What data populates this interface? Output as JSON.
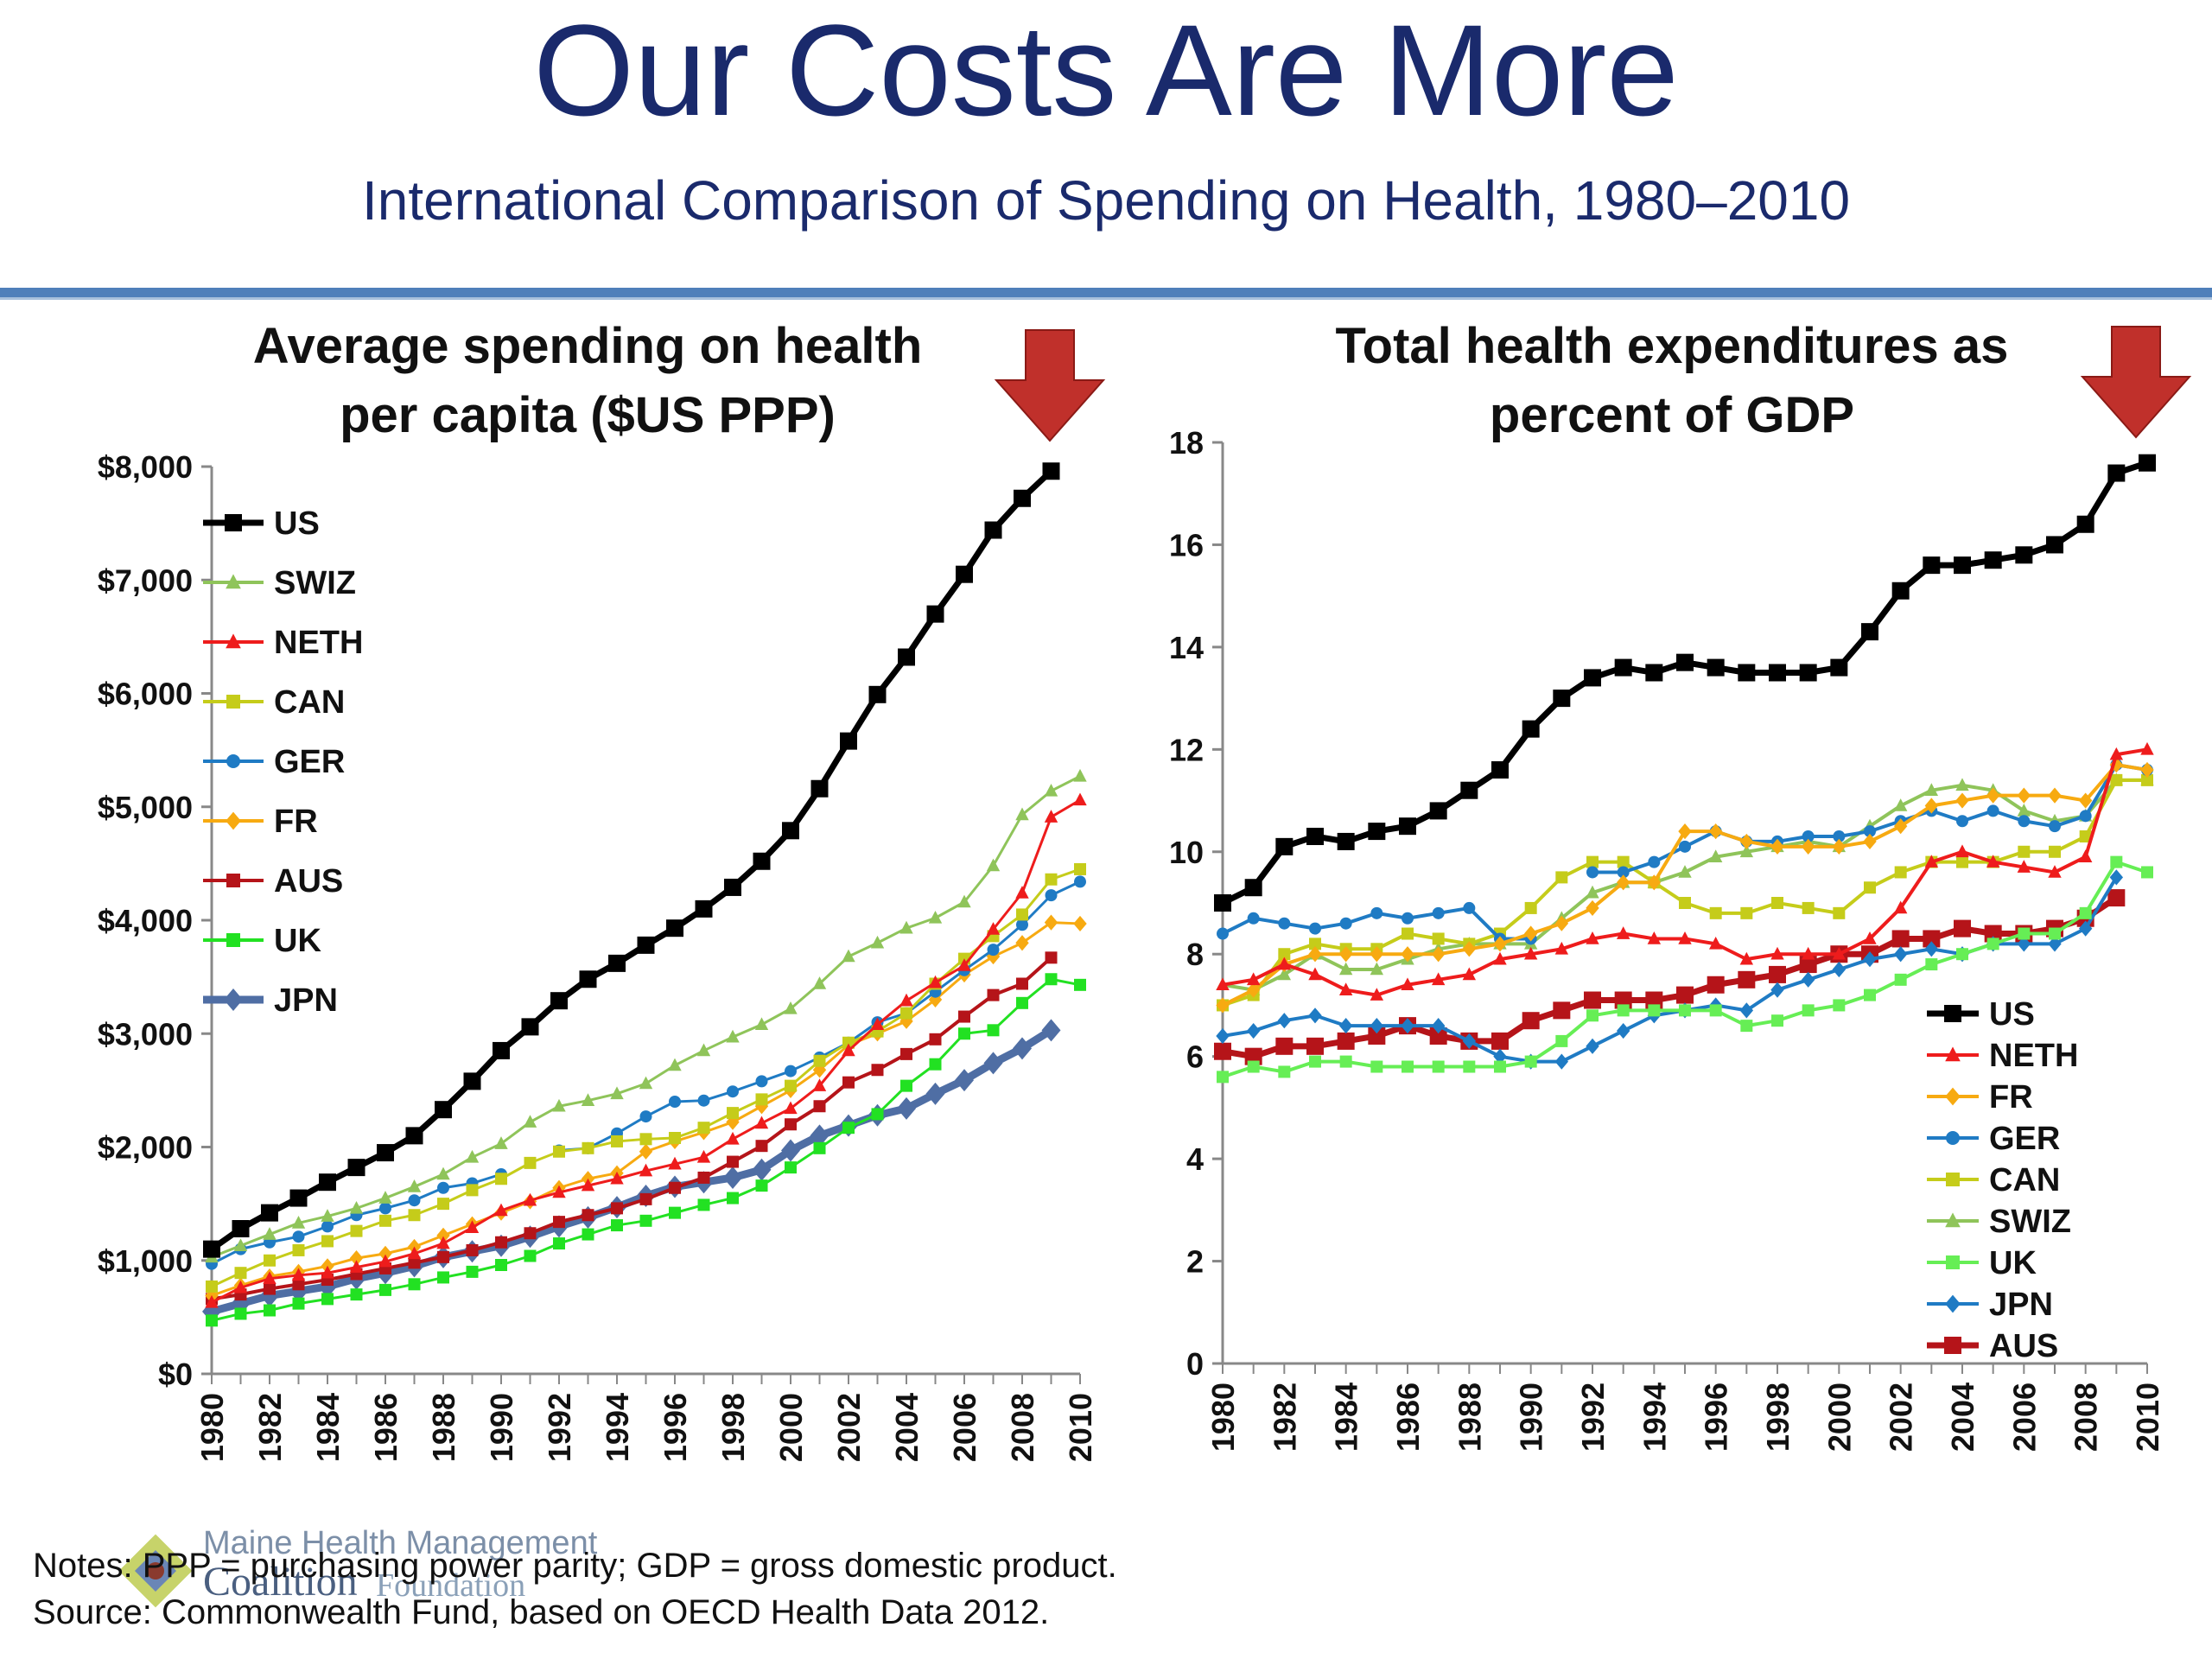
{
  "slide": {
    "title": "Our Costs Are More",
    "subtitle": "International Comparison of Spending on Health, 1980–2010",
    "notes_line1": "Notes: PPP = purchasing power parity; GDP = gross domestic product.",
    "notes_line2": "Source: Commonwealth Fund, based on OECD Health Data 2012.",
    "logo_line1": "Maine Health Management",
    "logo_line2": "Coalition",
    "logo_line3": "Foundation",
    "arrow_color": "#c0302b"
  },
  "chart_data": [
    {
      "type": "line",
      "title_lines": [
        "Average spending on health",
        "per capita ($US PPP)"
      ],
      "ylim": [
        0,
        8000
      ],
      "yticks": [
        0,
        1000,
        2000,
        3000,
        4000,
        5000,
        6000,
        7000,
        8000
      ],
      "ytick_labels": [
        "$0",
        "$1,000",
        "$2,000",
        "$3,000",
        "$4,000",
        "$5,000",
        "$6,000",
        "$7,000",
        "$8,000"
      ],
      "xlim": [
        1980,
        2010
      ],
      "xtick_labels": [
        "1980",
        "1982",
        "1984",
        "1986",
        "1988",
        "1990",
        "1992",
        "1994",
        "1996",
        "1998",
        "2000",
        "2002",
        "2004",
        "2006",
        "2008",
        "2010"
      ],
      "legend_position": "top-left",
      "x": [
        1980,
        1981,
        1982,
        1983,
        1984,
        1985,
        1986,
        1987,
        1988,
        1989,
        1990,
        1991,
        1992,
        1993,
        1994,
        1995,
        1996,
        1997,
        1998,
        1999,
        2000,
        2001,
        2002,
        2003,
        2004,
        2005,
        2006,
        2007,
        2008,
        2009,
        2010
      ],
      "series": [
        {
          "name": "US",
          "color": "#000000",
          "marker": "square",
          "width": 7,
          "values": [
            1100,
            1280,
            1420,
            1550,
            1690,
            1820,
            1950,
            2100,
            2330,
            2580,
            2850,
            3060,
            3290,
            3480,
            3620,
            3780,
            3930,
            4100,
            4290,
            4520,
            4790,
            5160,
            5580,
            5990,
            6320,
            6700,
            7050,
            7440,
            7720,
            7960,
            null
          ]
        },
        {
          "name": "SWIZ",
          "color": "#8fc45a",
          "marker": "triangle",
          "width": 3,
          "values": [
            1030,
            1130,
            1230,
            1330,
            1390,
            1460,
            1550,
            1650,
            1760,
            1910,
            2030,
            2220,
            2360,
            2410,
            2470,
            2560,
            2720,
            2850,
            2970,
            3080,
            3220,
            3440,
            3680,
            3800,
            3930,
            4020,
            4160,
            4480,
            4930,
            5140,
            5270
          ]
        },
        {
          "name": "NETH",
          "color": "#ee1c1c",
          "marker": "triangle",
          "width": 3,
          "values": [
            630,
            760,
            840,
            870,
            890,
            940,
            990,
            1060,
            1150,
            1290,
            1440,
            1530,
            1600,
            1660,
            1720,
            1790,
            1850,
            1910,
            2070,
            2210,
            2340,
            2540,
            2850,
            3080,
            3290,
            3450,
            3600,
            3920,
            4240,
            4910,
            5060
          ]
        },
        {
          "name": "CAN",
          "color": "#c5cc1a",
          "marker": "square",
          "width": 3,
          "values": [
            770,
            890,
            1000,
            1090,
            1170,
            1260,
            1350,
            1400,
            1500,
            1620,
            1720,
            1860,
            1960,
            1990,
            2050,
            2070,
            2080,
            2170,
            2300,
            2420,
            2540,
            2760,
            2920,
            3020,
            3180,
            3440,
            3660,
            3860,
            4050,
            4360,
            4450
          ]
        },
        {
          "name": "GER",
          "color": "#1f7bc4",
          "marker": "circle",
          "width": 3,
          "values": [
            970,
            1100,
            1160,
            1210,
            1300,
            1400,
            1460,
            1530,
            1640,
            1680,
            1760,
            null,
            1970,
            1990,
            2120,
            2270,
            2400,
            2410,
            2490,
            2580,
            2670,
            2790,
            2920,
            3100,
            3180,
            3370,
            3560,
            3740,
            3960,
            4220,
            4340
          ]
        },
        {
          "name": "FR",
          "color": "#f7aa11",
          "marker": "diamond",
          "width": 3,
          "values": [
            690,
            780,
            860,
            900,
            950,
            1020,
            1060,
            1120,
            1220,
            1320,
            1420,
            1520,
            1640,
            1720,
            1770,
            1960,
            2050,
            2130,
            2220,
            2360,
            2500,
            2680,
            2900,
            3000,
            3110,
            3300,
            3520,
            3680,
            3800,
            3980,
            3970
          ]
        },
        {
          "name": "AUS",
          "color": "#b51419",
          "marker": "square",
          "width": 4,
          "values": [
            660,
            700,
            750,
            790,
            830,
            880,
            930,
            980,
            1030,
            1090,
            1160,
            1240,
            1340,
            1400,
            1460,
            1540,
            1640,
            1730,
            1870,
            2010,
            2200,
            2360,
            2570,
            2680,
            2820,
            2950,
            3150,
            3340,
            3440,
            3670,
            null
          ]
        },
        {
          "name": "UK",
          "color": "#22e122",
          "marker": "square",
          "width": 3,
          "values": [
            470,
            530,
            560,
            620,
            660,
            700,
            740,
            790,
            850,
            900,
            960,
            1040,
            1150,
            1230,
            1310,
            1350,
            1420,
            1490,
            1550,
            1660,
            1820,
            1990,
            2170,
            2290,
            2540,
            2730,
            3000,
            3030,
            3270,
            3480,
            3430
          ]
        },
        {
          "name": "JPN",
          "color": "#4f6ea4",
          "marker": "diamond",
          "width": 9,
          "values": [
            550,
            620,
            690,
            730,
            770,
            840,
            890,
            950,
            1030,
            1080,
            1130,
            1210,
            1300,
            1380,
            1470,
            1570,
            1650,
            1690,
            1730,
            1800,
            1970,
            2100,
            2190,
            2280,
            2340,
            2470,
            2590,
            2740,
            2870,
            3030,
            null
          ]
        }
      ]
    },
    {
      "type": "line",
      "title_lines": [
        "Total health expenditures as",
        "percent of GDP"
      ],
      "ylim": [
        0,
        18
      ],
      "yticks": [
        0,
        2,
        4,
        6,
        8,
        10,
        12,
        14,
        16,
        18
      ],
      "ytick_labels": [
        "0",
        "2",
        "4",
        "6",
        "8",
        "10",
        "12",
        "14",
        "16",
        "18"
      ],
      "xlim": [
        1980,
        2010
      ],
      "xtick_labels": [
        "1980",
        "1982",
        "1984",
        "1986",
        "1988",
        "1990",
        "1992",
        "1994",
        "1996",
        "1998",
        "2000",
        "2002",
        "2004",
        "2006",
        "2008",
        "2010"
      ],
      "legend_position": "bottom-right",
      "x": [
        1980,
        1981,
        1982,
        1983,
        1984,
        1985,
        1986,
        1987,
        1988,
        1989,
        1990,
        1991,
        1992,
        1993,
        1994,
        1995,
        1996,
        1997,
        1998,
        1999,
        2000,
        2001,
        2002,
        2003,
        2004,
        2005,
        2006,
        2007,
        2008,
        2009,
        2010
      ],
      "series": [
        {
          "name": "US",
          "color": "#000000",
          "marker": "square",
          "width": 7,
          "values": [
            9.0,
            9.3,
            10.1,
            10.3,
            10.2,
            10.4,
            10.5,
            10.8,
            11.2,
            11.6,
            12.4,
            13.0,
            13.4,
            13.6,
            13.5,
            13.7,
            13.6,
            13.5,
            13.5,
            13.5,
            13.6,
            14.3,
            15.1,
            15.6,
            15.6,
            15.7,
            15.8,
            16.0,
            16.4,
            17.4,
            17.6
          ]
        },
        {
          "name": "NETH",
          "color": "#ee1c1c",
          "marker": "triangle",
          "width": 4,
          "values": [
            7.4,
            7.5,
            7.8,
            7.6,
            7.3,
            7.2,
            7.4,
            7.5,
            7.6,
            7.9,
            8.0,
            8.1,
            8.3,
            8.4,
            8.3,
            8.3,
            8.2,
            7.9,
            8.0,
            8.0,
            8.0,
            8.3,
            8.9,
            9.8,
            10.0,
            9.8,
            9.7,
            9.6,
            9.9,
            11.9,
            12.0
          ]
        },
        {
          "name": "FR",
          "color": "#f7aa11",
          "marker": "diamond",
          "width": 4,
          "values": [
            7.0,
            7.3,
            7.8,
            8.0,
            8.0,
            8.0,
            8.0,
            8.0,
            8.1,
            8.2,
            8.4,
            8.6,
            8.9,
            9.4,
            9.4,
            10.4,
            10.4,
            10.2,
            10.1,
            10.1,
            10.1,
            10.2,
            10.5,
            10.9,
            11.0,
            11.1,
            11.1,
            11.1,
            11.0,
            11.7,
            11.6
          ]
        },
        {
          "name": "GER",
          "color": "#1f7bc4",
          "marker": "circle",
          "width": 4,
          "values": [
            8.4,
            8.7,
            8.6,
            8.5,
            8.6,
            8.8,
            8.7,
            8.8,
            8.9,
            8.3,
            8.3,
            null,
            9.6,
            9.6,
            9.8,
            10.1,
            10.4,
            10.2,
            10.2,
            10.3,
            10.3,
            10.4,
            10.6,
            10.8,
            10.6,
            10.8,
            10.6,
            10.5,
            10.7,
            11.7,
            11.6
          ]
        },
        {
          "name": "CAN",
          "color": "#c5cc1a",
          "marker": "square",
          "width": 4,
          "values": [
            7.0,
            7.2,
            8.0,
            8.2,
            8.1,
            8.1,
            8.4,
            8.3,
            8.2,
            8.4,
            8.9,
            9.5,
            9.8,
            9.8,
            9.4,
            9.0,
            8.8,
            8.8,
            9.0,
            8.9,
            8.8,
            9.3,
            9.6,
            9.8,
            9.8,
            9.8,
            10.0,
            10.0,
            10.3,
            11.4,
            11.4
          ]
        },
        {
          "name": "SWIZ",
          "color": "#8fc45a",
          "marker": "triangle",
          "width": 4,
          "values": [
            7.4,
            7.3,
            7.6,
            8.0,
            7.7,
            7.7,
            7.9,
            8.1,
            8.2,
            8.2,
            8.2,
            8.7,
            9.2,
            9.4,
            9.4,
            9.6,
            9.9,
            10.0,
            10.1,
            10.2,
            10.1,
            10.5,
            10.9,
            11.2,
            11.3,
            11.2,
            10.8,
            10.6,
            10.7,
            11.4,
            11.4
          ]
        },
        {
          "name": "UK",
          "color": "#66ee55",
          "marker": "square",
          "width": 4,
          "values": [
            5.6,
            5.8,
            5.7,
            5.9,
            5.9,
            5.8,
            5.8,
            5.8,
            5.8,
            5.8,
            5.9,
            6.3,
            6.8,
            6.9,
            6.9,
            6.9,
            6.9,
            6.6,
            6.7,
            6.9,
            7.0,
            7.2,
            7.5,
            7.8,
            8.0,
            8.2,
            8.4,
            8.4,
            8.8,
            9.8,
            9.6
          ]
        },
        {
          "name": "JPN",
          "color": "#1f7bc4",
          "marker": "diamond",
          "width": 4,
          "values": [
            6.4,
            6.5,
            6.7,
            6.8,
            6.6,
            6.6,
            6.6,
            6.6,
            6.3,
            6.0,
            5.9,
            5.9,
            6.2,
            6.5,
            6.8,
            6.9,
            7.0,
            6.9,
            7.3,
            7.5,
            7.7,
            7.9,
            8.0,
            8.1,
            8.0,
            8.2,
            8.2,
            8.2,
            8.5,
            9.5,
            null
          ]
        },
        {
          "name": "AUS",
          "color": "#b51419",
          "marker": "square",
          "width": 7,
          "values": [
            6.1,
            6.0,
            6.2,
            6.2,
            6.3,
            6.4,
            6.6,
            6.4,
            6.3,
            6.3,
            6.7,
            6.9,
            7.1,
            7.1,
            7.1,
            7.2,
            7.4,
            7.5,
            7.6,
            7.8,
            8.0,
            8.0,
            8.3,
            8.3,
            8.5,
            8.4,
            8.4,
            8.5,
            8.7,
            9.1,
            null
          ]
        }
      ]
    }
  ]
}
